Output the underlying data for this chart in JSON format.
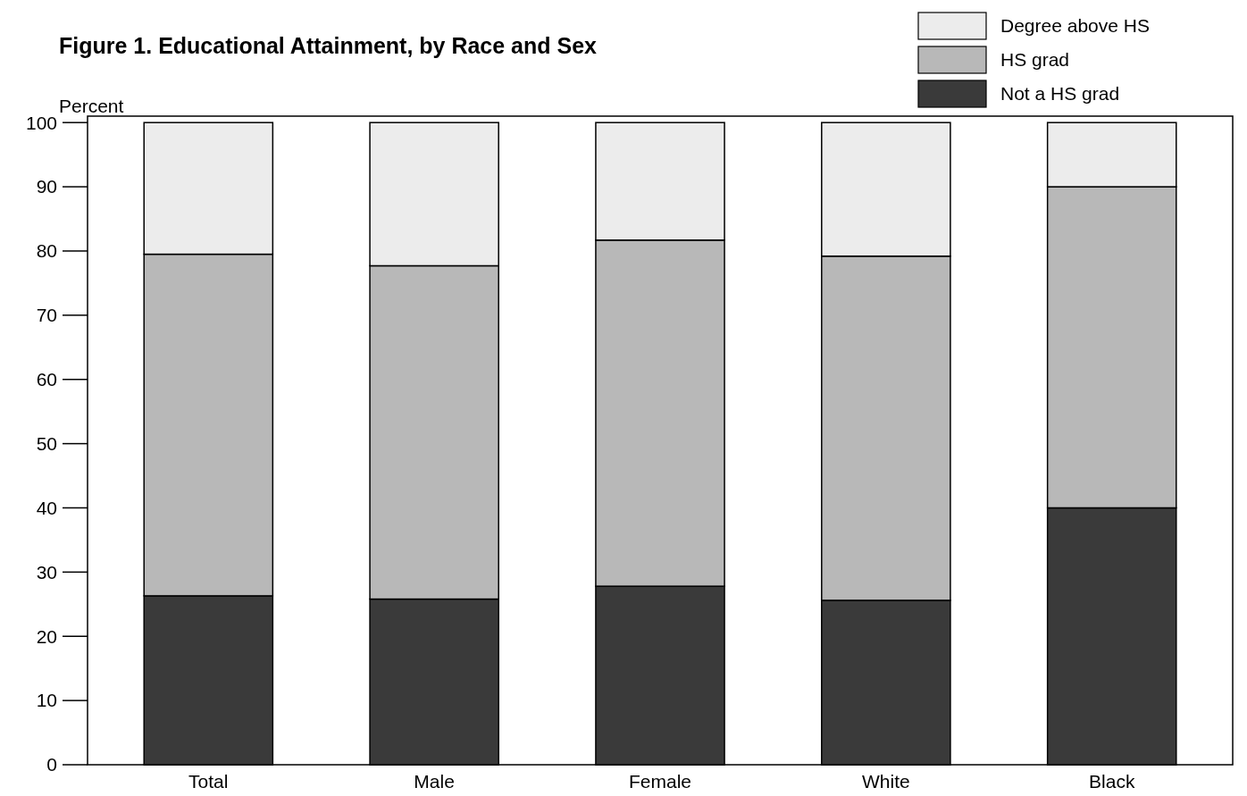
{
  "chart_data": {
    "type": "bar",
    "title": "Figure 1. Educational Attainment, by Race and Sex",
    "ylabel": "Percent",
    "stacked": true,
    "categories": [
      "Total",
      "Male",
      "Female",
      "White",
      "Black"
    ],
    "series": [
      {
        "name": "Not a HS grad",
        "color": "#3a3a3a",
        "values": [
          26.3,
          25.8,
          27.8,
          25.6,
          40.0
        ]
      },
      {
        "name": "HS grad",
        "color": "#b8b8b8",
        "values": [
          53.2,
          51.9,
          53.9,
          53.6,
          50.0
        ]
      },
      {
        "name": "Degree above HS",
        "color": "#ececec",
        "values": [
          20.5,
          22.3,
          18.3,
          20.8,
          10.0
        ]
      }
    ],
    "ylim": [
      0,
      101
    ],
    "yticks": [
      0,
      10,
      20,
      30,
      40,
      50,
      60,
      70,
      80,
      90,
      100
    ],
    "grid": false,
    "legend": "top right"
  }
}
